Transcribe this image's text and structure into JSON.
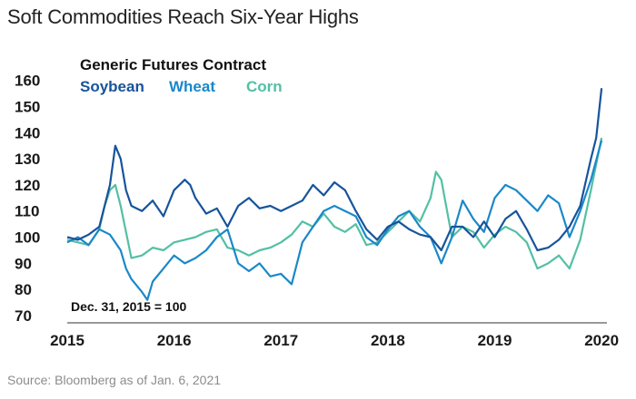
{
  "chart_data": {
    "type": "line",
    "title": "Soft Commodities Reach Six-Year Highs",
    "legend_title": "Generic Futures Contract",
    "annotation": "Dec. 31, 2015 = 100",
    "source": "Source: Bloomberg as of Jan. 6, 2021",
    "xlabel": "",
    "ylabel": "",
    "x_ticks": [
      "2015",
      "2016",
      "2017",
      "2018",
      "2019",
      "2020"
    ],
    "y_ticks": [
      70,
      80,
      90,
      100,
      110,
      120,
      130,
      140,
      150,
      160
    ],
    "xlim": [
      2015.0,
      2020.05
    ],
    "ylim": [
      70,
      163
    ],
    "series": [
      {
        "name": "Soybean",
        "color": "#17549b",
        "x": [
          2015.0,
          2015.1,
          2015.2,
          2015.3,
          2015.4,
          2015.45,
          2015.5,
          2015.55,
          2015.6,
          2015.7,
          2015.8,
          2015.9,
          2016.0,
          2016.1,
          2016.15,
          2016.2,
          2016.3,
          2016.4,
          2016.5,
          2016.6,
          2016.7,
          2016.8,
          2016.9,
          2017.0,
          2017.1,
          2017.2,
          2017.3,
          2017.4,
          2017.5,
          2017.6,
          2017.7,
          2017.8,
          2017.9,
          2018.0,
          2018.1,
          2018.2,
          2018.3,
          2018.4,
          2018.5,
          2018.6,
          2018.7,
          2018.8,
          2018.9,
          2019.0,
          2019.1,
          2019.2,
          2019.3,
          2019.4,
          2019.5,
          2019.6,
          2019.7,
          2019.8,
          2019.9,
          2019.95,
          2020.0
        ],
        "values": [
          100,
          99,
          101,
          104,
          120,
          135,
          130,
          118,
          112,
          110,
          114,
          108,
          118,
          122,
          120,
          115,
          109,
          111,
          104,
          112,
          115,
          111,
          112,
          110,
          112,
          114,
          120,
          116,
          121,
          118,
          110,
          103,
          99,
          104,
          106,
          103,
          101,
          100,
          95,
          104,
          104,
          100,
          106,
          100,
          107,
          110,
          103,
          95,
          96,
          99,
          104,
          112,
          130,
          138,
          157
        ]
      },
      {
        "name": "Wheat",
        "color": "#1a88c9",
        "x": [
          2015.0,
          2015.1,
          2015.2,
          2015.3,
          2015.4,
          2015.5,
          2015.55,
          2015.6,
          2015.7,
          2015.75,
          2015.8,
          2015.9,
          2016.0,
          2016.1,
          2016.2,
          2016.3,
          2016.4,
          2016.5,
          2016.6,
          2016.7,
          2016.8,
          2016.9,
          2017.0,
          2017.1,
          2017.2,
          2017.3,
          2017.4,
          2017.5,
          2017.6,
          2017.7,
          2017.8,
          2017.9,
          2018.0,
          2018.1,
          2018.2,
          2018.3,
          2018.4,
          2018.5,
          2018.6,
          2018.7,
          2018.8,
          2018.9,
          2019.0,
          2019.1,
          2019.2,
          2019.3,
          2019.4,
          2019.5,
          2019.6,
          2019.7,
          2019.8,
          2019.9,
          2020.0
        ],
        "values": [
          98,
          100,
          97,
          103,
          101,
          95,
          88,
          84,
          79,
          76,
          83,
          88,
          93,
          90,
          92,
          95,
          100,
          103,
          90,
          87,
          90,
          85,
          86,
          82,
          98,
          104,
          110,
          112,
          110,
          108,
          100,
          97,
          103,
          108,
          110,
          104,
          100,
          90,
          100,
          114,
          107,
          102,
          115,
          120,
          118,
          114,
          110,
          116,
          113,
          100,
          110,
          122,
          137
        ]
      },
      {
        "name": "Corn",
        "color": "#52c0a4",
        "x": [
          2015.0,
          2015.1,
          2015.2,
          2015.3,
          2015.35,
          2015.4,
          2015.45,
          2015.5,
          2015.6,
          2015.7,
          2015.8,
          2015.9,
          2016.0,
          2016.1,
          2016.2,
          2016.3,
          2016.4,
          2016.5,
          2016.6,
          2016.7,
          2016.8,
          2016.9,
          2017.0,
          2017.1,
          2017.2,
          2017.3,
          2017.4,
          2017.5,
          2017.6,
          2017.7,
          2017.8,
          2017.9,
          2018.0,
          2018.1,
          2018.2,
          2018.3,
          2018.4,
          2018.45,
          2018.5,
          2018.6,
          2018.7,
          2018.8,
          2018.9,
          2019.0,
          2019.1,
          2019.2,
          2019.3,
          2019.4,
          2019.5,
          2019.6,
          2019.7,
          2019.8,
          2019.9,
          2020.0
        ],
        "values": [
          99,
          98,
          97,
          103,
          112,
          118,
          120,
          112,
          92,
          93,
          96,
          95,
          98,
          99,
          100,
          102,
          103,
          96,
          95,
          93,
          95,
          96,
          98,
          101,
          106,
          104,
          109,
          104,
          102,
          105,
          97,
          98,
          102,
          106,
          110,
          106,
          115,
          125,
          122,
          100,
          104,
          102,
          96,
          101,
          104,
          102,
          98,
          88,
          90,
          93,
          88,
          99,
          118,
          138
        ]
      }
    ]
  }
}
